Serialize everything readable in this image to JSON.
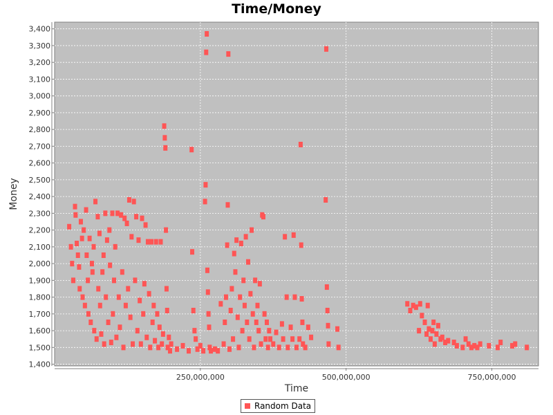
{
  "chart_data": {
    "type": "scatter",
    "title": "Time/Money",
    "xlabel": "Time",
    "ylabel": "Money",
    "xlim": [
      0,
      830000000
    ],
    "ylim": [
      1390,
      3440
    ],
    "x_ticks": [
      250000000,
      500000000,
      750000000
    ],
    "x_tick_labels": [
      "250,000,000",
      "500,000,000",
      "750,000,000"
    ],
    "y_ticks": [
      1400,
      1500,
      1600,
      1700,
      1800,
      1900,
      2000,
      2100,
      2200,
      2300,
      2400,
      2500,
      2600,
      2700,
      2800,
      2900,
      3000,
      3100,
      3200,
      3300,
      3400
    ],
    "y_tick_labels": [
      "1,400",
      "1,500",
      "1,600",
      "1,700",
      "1,800",
      "1,900",
      "2,000",
      "2,100",
      "2,200",
      "2,300",
      "2,400",
      "2,500",
      "2,600",
      "2,700",
      "2,800",
      "2,900",
      "3,000",
      "3,100",
      "3,200",
      "3,300",
      "3,400"
    ],
    "grid": true,
    "legend_position": "bottom-center",
    "colors": {
      "series": "#ff5555",
      "plot_bg": "#c0c0c0",
      "grid": "#ffffff"
    },
    "series": [
      {
        "name": "Random Data",
        "points": [
          [
            25000000,
            2220
          ],
          [
            28000000,
            2100
          ],
          [
            30000000,
            2000
          ],
          [
            32000000,
            1900
          ],
          [
            35000000,
            2340
          ],
          [
            36000000,
            2290
          ],
          [
            38000000,
            2120
          ],
          [
            40000000,
            2050
          ],
          [
            42000000,
            1980
          ],
          [
            43000000,
            1850
          ],
          [
            45000000,
            2250
          ],
          [
            47000000,
            2150
          ],
          [
            48000000,
            1800
          ],
          [
            50000000,
            2200
          ],
          [
            52000000,
            1750
          ],
          [
            54000000,
            2320
          ],
          [
            55000000,
            2050
          ],
          [
            57000000,
            1900
          ],
          [
            58000000,
            1700
          ],
          [
            60000000,
            2150
          ],
          [
            62000000,
            1650
          ],
          [
            64000000,
            2000
          ],
          [
            65000000,
            1950
          ],
          [
            67000000,
            2100
          ],
          [
            68000000,
            1600
          ],
          [
            70000000,
            2370
          ],
          [
            72000000,
            1550
          ],
          [
            74000000,
            2280
          ],
          [
            75000000,
            1850
          ],
          [
            77000000,
            2180
          ],
          [
            78000000,
            1750
          ],
          [
            80000000,
            1580
          ],
          [
            82000000,
            1950
          ],
          [
            84000000,
            2050
          ],
          [
            85000000,
            1520
          ],
          [
            87000000,
            2300
          ],
          [
            88000000,
            1800
          ],
          [
            90000000,
            2140
          ],
          [
            92000000,
            1650
          ],
          [
            94000000,
            2200
          ],
          [
            95000000,
            1990
          ],
          [
            97000000,
            1530
          ],
          [
            99000000,
            2300
          ],
          [
            100000000,
            1700
          ],
          [
            102000000,
            1900
          ],
          [
            104000000,
            2100
          ],
          [
            106000000,
            1560
          ],
          [
            108000000,
            2300
          ],
          [
            110000000,
            1800
          ],
          [
            112000000,
            1620
          ],
          [
            114000000,
            2290
          ],
          [
            116000000,
            1950
          ],
          [
            118000000,
            1500
          ],
          [
            120000000,
            2270
          ],
          [
            122000000,
            1750
          ],
          [
            124000000,
            2240
          ],
          [
            126000000,
            1850
          ],
          [
            128000000,
            2380
          ],
          [
            130000000,
            1680
          ],
          [
            132000000,
            2160
          ],
          [
            134000000,
            1520
          ],
          [
            136000000,
            2370
          ],
          [
            138000000,
            1900
          ],
          [
            140000000,
            2280
          ],
          [
            142000000,
            1600
          ],
          [
            144000000,
            2140
          ],
          [
            146000000,
            1780
          ],
          [
            148000000,
            1520
          ],
          [
            150000000,
            2270
          ],
          [
            152000000,
            1700
          ],
          [
            154000000,
            1880
          ],
          [
            156000000,
            2230
          ],
          [
            158000000,
            1560
          ],
          [
            160000000,
            2130
          ],
          [
            162000000,
            1820
          ],
          [
            164000000,
            1500
          ],
          [
            166000000,
            2130
          ],
          [
            168000000,
            1650
          ],
          [
            170000000,
            1750
          ],
          [
            172000000,
            1540
          ],
          [
            174000000,
            2130
          ],
          [
            176000000,
            1700
          ],
          [
            178000000,
            1500
          ],
          [
            180000000,
            1620
          ],
          [
            182000000,
            2130
          ],
          [
            184000000,
            1520
          ],
          [
            186000000,
            1580
          ],
          [
            188000000,
            2820
          ],
          [
            189000000,
            2750
          ],
          [
            190000000,
            2690
          ],
          [
            191000000,
            2200
          ],
          [
            192000000,
            1850
          ],
          [
            193000000,
            1720
          ],
          [
            194000000,
            1500
          ],
          [
            196000000,
            1560
          ],
          [
            198000000,
            1480
          ],
          [
            200000000,
            1520
          ],
          [
            210000000,
            1490
          ],
          [
            220000000,
            1510
          ],
          [
            230000000,
            1480
          ],
          [
            235000000,
            2680
          ],
          [
            236000000,
            2070
          ],
          [
            238000000,
            1720
          ],
          [
            240000000,
            1600
          ],
          [
            242000000,
            1550
          ],
          [
            245000000,
            1490
          ],
          [
            250000000,
            1510
          ],
          [
            255000000,
            1480
          ],
          [
            258000000,
            2370
          ],
          [
            259000000,
            2470
          ],
          [
            260000000,
            3260
          ],
          [
            261000000,
            3370
          ],
          [
            262000000,
            1960
          ],
          [
            263000000,
            1830
          ],
          [
            264000000,
            1700
          ],
          [
            265000000,
            1620
          ],
          [
            266000000,
            1500
          ],
          [
            268000000,
            1480
          ],
          [
            275000000,
            1490
          ],
          [
            280000000,
            1480
          ],
          [
            285000000,
            1760
          ],
          [
            290000000,
            1520
          ],
          [
            292000000,
            1650
          ],
          [
            294000000,
            1800
          ],
          [
            296000000,
            2110
          ],
          [
            297000000,
            2350
          ],
          [
            298000000,
            3250
          ],
          [
            300000000,
            1490
          ],
          [
            302000000,
            1720
          ],
          [
            304000000,
            1850
          ],
          [
            306000000,
            1550
          ],
          [
            308000000,
            2060
          ],
          [
            310000000,
            1950
          ],
          [
            312000000,
            2140
          ],
          [
            314000000,
            1680
          ],
          [
            316000000,
            1500
          ],
          [
            318000000,
            1800
          ],
          [
            320000000,
            2120
          ],
          [
            322000000,
            1600
          ],
          [
            324000000,
            1900
          ],
          [
            326000000,
            1750
          ],
          [
            328000000,
            2160
          ],
          [
            330000000,
            1650
          ],
          [
            332000000,
            2010
          ],
          [
            334000000,
            1550
          ],
          [
            336000000,
            1820
          ],
          [
            338000000,
            2200
          ],
          [
            340000000,
            1700
          ],
          [
            342000000,
            1500
          ],
          [
            344000000,
            1900
          ],
          [
            346000000,
            1650
          ],
          [
            348000000,
            1750
          ],
          [
            350000000,
            1600
          ],
          [
            352000000,
            1880
          ],
          [
            354000000,
            1520
          ],
          [
            356000000,
            2290
          ],
          [
            358000000,
            2280
          ],
          [
            360000000,
            1700
          ],
          [
            362000000,
            1550
          ],
          [
            364000000,
            1650
          ],
          [
            366000000,
            1500
          ],
          [
            368000000,
            1600
          ],
          [
            370000000,
            1550
          ],
          [
            375000000,
            1520
          ],
          [
            380000000,
            1590
          ],
          [
            385000000,
            1500
          ],
          [
            390000000,
            1640
          ],
          [
            392000000,
            1550
          ],
          [
            395000000,
            2160
          ],
          [
            398000000,
            1800
          ],
          [
            400000000,
            1500
          ],
          [
            405000000,
            1620
          ],
          [
            408000000,
            1550
          ],
          [
            410000000,
            2170
          ],
          [
            412000000,
            1800
          ],
          [
            415000000,
            1500
          ],
          [
            420000000,
            1550
          ],
          [
            422000000,
            2710
          ],
          [
            423000000,
            2110
          ],
          [
            424000000,
            1790
          ],
          [
            425000000,
            1650
          ],
          [
            426000000,
            1520
          ],
          [
            430000000,
            1500
          ],
          [
            435000000,
            1620
          ],
          [
            440000000,
            1560
          ],
          [
            465000000,
            2380
          ],
          [
            466000000,
            3280
          ],
          [
            467000000,
            1860
          ],
          [
            468000000,
            1720
          ],
          [
            469000000,
            1630
          ],
          [
            470000000,
            1520
          ],
          [
            485000000,
            1610
          ],
          [
            487000000,
            1500
          ],
          [
            605000000,
            1760
          ],
          [
            610000000,
            1720
          ],
          [
            615000000,
            1750
          ],
          [
            620000000,
            1740
          ],
          [
            625000000,
            1600
          ],
          [
            627000000,
            1760
          ],
          [
            630000000,
            1690
          ],
          [
            635000000,
            1650
          ],
          [
            638000000,
            1580
          ],
          [
            640000000,
            1750
          ],
          [
            642000000,
            1610
          ],
          [
            645000000,
            1550
          ],
          [
            648000000,
            1600
          ],
          [
            650000000,
            1650
          ],
          [
            652000000,
            1520
          ],
          [
            655000000,
            1580
          ],
          [
            658000000,
            1630
          ],
          [
            662000000,
            1550
          ],
          [
            665000000,
            1560
          ],
          [
            670000000,
            1530
          ],
          [
            675000000,
            1540
          ],
          [
            685000000,
            1530
          ],
          [
            690000000,
            1510
          ],
          [
            700000000,
            1500
          ],
          [
            705000000,
            1550
          ],
          [
            710000000,
            1520
          ],
          [
            715000000,
            1500
          ],
          [
            720000000,
            1510
          ],
          [
            725000000,
            1500
          ],
          [
            730000000,
            1520
          ],
          [
            745000000,
            1510
          ],
          [
            760000000,
            1500
          ],
          [
            765000000,
            1530
          ],
          [
            785000000,
            1510
          ],
          [
            790000000,
            1520
          ],
          [
            810000000,
            1500
          ]
        ]
      }
    ]
  }
}
